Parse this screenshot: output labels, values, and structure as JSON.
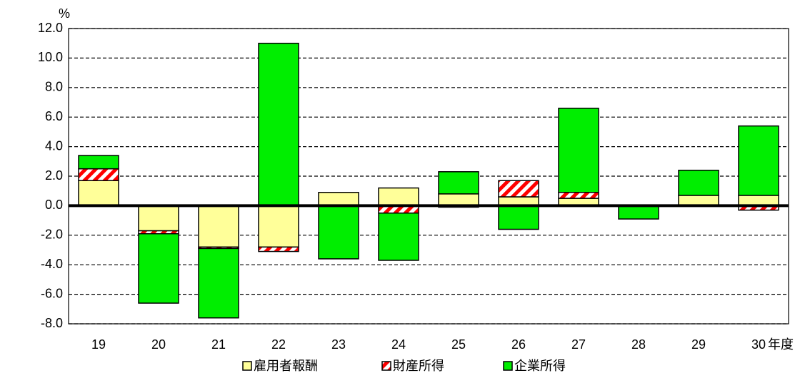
{
  "chart_data": {
    "type": "bar",
    "stacked": true,
    "y_unit": "%",
    "x_label": "年度",
    "categories": [
      "19",
      "20",
      "21",
      "22",
      "23",
      "24",
      "25",
      "26",
      "27",
      "28",
      "29",
      "30"
    ],
    "series": [
      {
        "name": "雇用者報酬",
        "color": "#ffff99",
        "pattern": "solid",
        "values": [
          1.7,
          -1.7,
          -2.8,
          -2.8,
          0.9,
          1.2,
          0.8,
          0.6,
          0.5,
          0.0,
          0.7,
          0.7
        ]
      },
      {
        "name": "財産所得",
        "color": "#ff0000",
        "pattern": "hatch",
        "values": [
          0.8,
          -0.2,
          -0.1,
          -0.3,
          0.0,
          -0.5,
          -0.1,
          1.1,
          0.4,
          0.0,
          0.0,
          -0.3
        ]
      },
      {
        "name": "企業所得",
        "color": "#00ee00",
        "pattern": "solid",
        "values": [
          0.9,
          -4.7,
          -4.7,
          11.0,
          -3.6,
          -3.2,
          1.5,
          -1.6,
          5.7,
          -0.9,
          1.7,
          4.7
        ]
      }
    ],
    "ylim": [
      -8,
      12
    ],
    "yticks": [
      {
        "value": -8,
        "label": "-8.0"
      },
      {
        "value": -6,
        "label": "-6.0"
      },
      {
        "value": -4,
        "label": "-4.0"
      },
      {
        "value": -2,
        "label": "-2.0"
      },
      {
        "value": 0,
        "label": "0.0"
      },
      {
        "value": 2,
        "label": "2.0"
      },
      {
        "value": 4,
        "label": "4.0"
      },
      {
        "value": 6,
        "label": "6.0"
      },
      {
        "value": 8,
        "label": "8.0"
      },
      {
        "value": 10,
        "label": "10.0"
      },
      {
        "value": 12,
        "label": "12.0"
      }
    ],
    "grid": true,
    "legend": "bottom"
  }
}
